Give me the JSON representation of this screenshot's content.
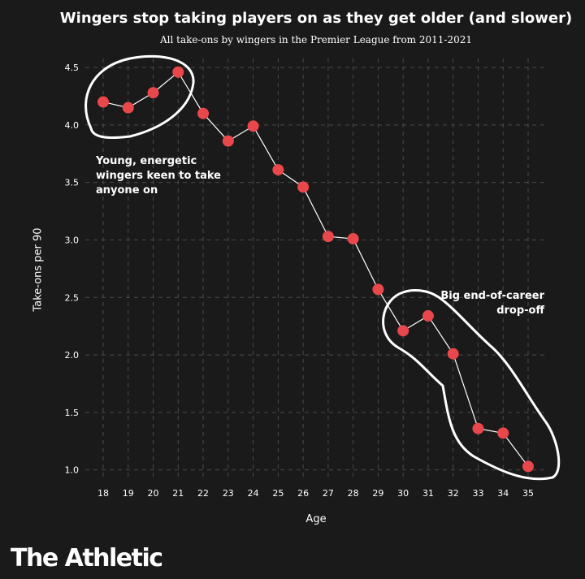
{
  "chart_data": {
    "type": "line",
    "title": "Wingers stop taking players on as they get older (and slower)",
    "subtitle": "All take-ons by wingers in the Premier League from 2011-2021",
    "xlabel": "Age",
    "ylabel": "Take-ons per 90",
    "x": [
      18,
      19,
      20,
      21,
      22,
      23,
      24,
      25,
      26,
      27,
      28,
      29,
      30,
      31,
      32,
      33,
      34,
      35
    ],
    "values": [
      4.2,
      4.15,
      4.28,
      4.46,
      4.1,
      3.86,
      3.99,
      3.61,
      3.46,
      3.03,
      3.01,
      2.57,
      2.21,
      2.34,
      2.01,
      1.36,
      1.32,
      1.03
    ],
    "yticks": [
      "1.0",
      "1.5",
      "2.0",
      "2.5",
      "3.0",
      "3.5",
      "4.0",
      "4.5"
    ],
    "ylim": [
      0.92,
      4.55
    ],
    "grid": true,
    "marker_color": "#e8474b",
    "line_color": "#ffffff",
    "annotations": [
      "Young, energetic wingers keen to take anyone on",
      "Big end-of-career drop-off"
    ]
  },
  "brand": "The Athletic",
  "colors": {
    "background": "#1a1a1a",
    "grid": "#4a4a4a",
    "text": "#ffffff"
  }
}
